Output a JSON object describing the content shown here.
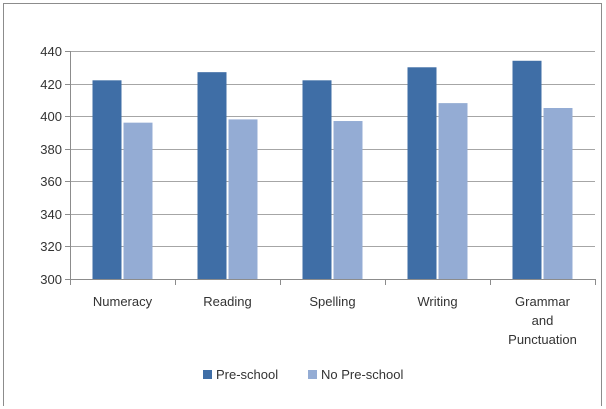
{
  "chart_data": {
    "type": "bar",
    "title": "",
    "xlabel": "",
    "ylabel": "",
    "categories": [
      [
        "Numeracy"
      ],
      [
        "Reading"
      ],
      [
        "Spelling"
      ],
      [
        "Writing"
      ],
      [
        "Grammar",
        "and",
        "Punctuation"
      ]
    ],
    "series": [
      {
        "name": "Pre-school",
        "color": "#3f6ea6",
        "values": [
          422,
          427,
          422,
          430,
          434
        ]
      },
      {
        "name": "No Pre-school",
        "color": "#94acd4",
        "values": [
          396,
          398,
          397,
          408,
          405
        ]
      }
    ],
    "ylim": [
      300,
      440
    ],
    "yticks": [
      300,
      320,
      340,
      360,
      380,
      400,
      420,
      440
    ],
    "grid": true,
    "legend_position": "bottom"
  }
}
